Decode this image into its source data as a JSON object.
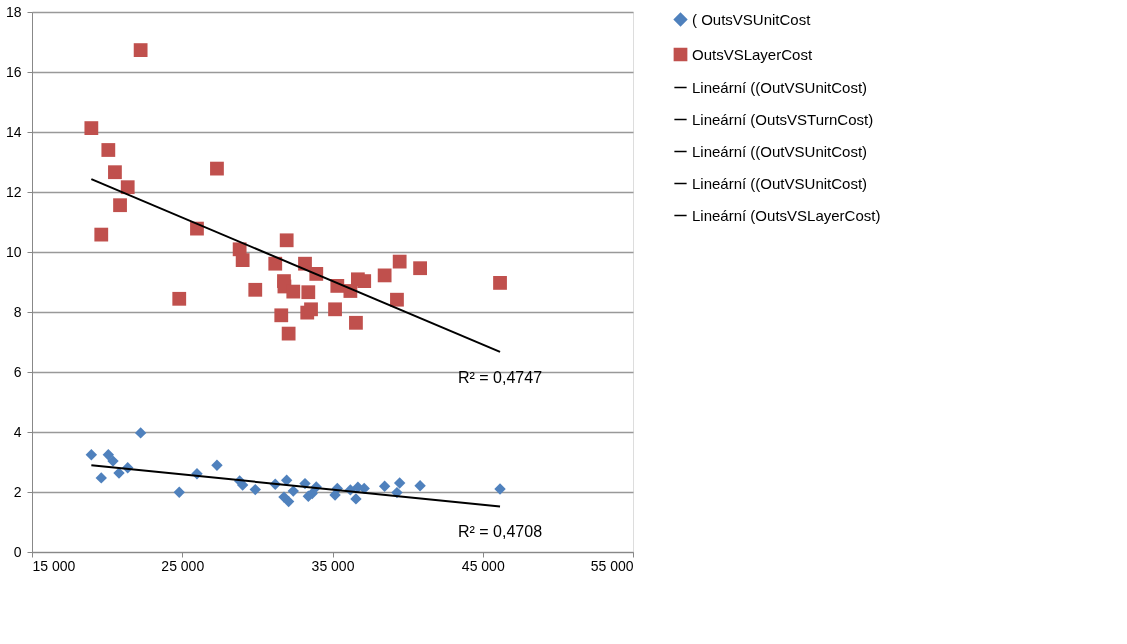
{
  "chart_data": {
    "type": "scatter",
    "xlim": [
      15000,
      55000
    ],
    "ylim": [
      0,
      18
    ],
    "xticks": [
      {
        "value": 15000,
        "label": "15 000"
      },
      {
        "value": 25000,
        "label": "25 000"
      },
      {
        "value": 35000,
        "label": "35 000"
      },
      {
        "value": 45000,
        "label": "45 000"
      },
      {
        "value": 55000,
        "label": "55 000"
      }
    ],
    "yticks": [
      0,
      2,
      4,
      6,
      8,
      10,
      12,
      14,
      16,
      18
    ],
    "grid": "y",
    "legend": "right",
    "series": [
      {
        "name": "( OutsVSUnitCost",
        "color": "#4f81bd",
        "marker": "diamond",
        "x": [
          18950,
          20080,
          20390,
          20790,
          21370,
          19610,
          22230,
          27310,
          25980,
          24800,
          28820,
          29020,
          29860,
          31190,
          31950,
          31770,
          32080,
          32390,
          33170,
          33390,
          33920,
          33650,
          35320,
          35170,
          36190,
          36690,
          37110,
          36560,
          38470,
          39470,
          39290,
          40830,
          46150
        ],
        "values": [
          3.24,
          3.24,
          3.03,
          2.63,
          2.81,
          2.47,
          3.97,
          2.89,
          2.61,
          1.99,
          2.37,
          2.23,
          2.08,
          2.26,
          2.39,
          1.83,
          1.68,
          2.03,
          2.28,
          1.86,
          2.17,
          1.95,
          2.12,
          1.9,
          2.07,
          2.16,
          2.12,
          1.77,
          2.19,
          2.3,
          1.98,
          2.21,
          2.1
        ]
      },
      {
        "name": "OutsVSLayerCost",
        "color": "#c0504d",
        "marker": "square",
        "x": [
          22230,
          18950,
          20080,
          20520,
          21370,
          20860,
          19610,
          27310,
          25980,
          24800,
          28820,
          29020,
          31950,
          31190,
          29860,
          31770,
          31800,
          32390,
          33170,
          33920,
          33390,
          31590,
          32080,
          33320,
          33570,
          35320,
          35170,
          36190,
          36690,
          37110,
          36560,
          38470,
          39470,
          39290,
          40830,
          46150
        ],
        "values": [
          16.73,
          14.13,
          13.4,
          12.66,
          12.16,
          11.56,
          10.58,
          12.78,
          10.78,
          8.44,
          10.09,
          9.73,
          10.39,
          9.61,
          8.74,
          9.03,
          8.85,
          8.68,
          9.61,
          9.27,
          8.66,
          7.89,
          7.28,
          7.98,
          8.09,
          8.87,
          8.09,
          8.7,
          9.09,
          9.03,
          7.64,
          9.22,
          9.68,
          8.41,
          9.46,
          8.97
        ]
      },
      {
        "name": "Lineární ((OutVSUnitCost)",
        "type": "line",
        "color": "#000000",
        "line_style": "solid",
        "x": [
          18950,
          46150
        ],
        "values": [
          2.89,
          1.52
        ]
      },
      {
        "name": "Lineární (OutsVSTurnCost)",
        "type": "line",
        "color": "#000000",
        "line_style": "solid"
      },
      {
        "name": "Lineární ((OutVSUnitCost)",
        "type": "line",
        "color": "#000000",
        "line_style": "solid"
      },
      {
        "name": "Lineární ((OutVSUnitCost)",
        "type": "line",
        "color": "#000000",
        "line_style": "solid"
      },
      {
        "name": "Lineární (OutsVSLayerCost)",
        "type": "line",
        "color": "#000000",
        "line_style": "solid",
        "x": [
          18950,
          46150
        ],
        "values": [
          12.43,
          6.67
        ]
      }
    ],
    "annotations": [
      "R² = 0,4747",
      "R² = 0,4708"
    ]
  }
}
